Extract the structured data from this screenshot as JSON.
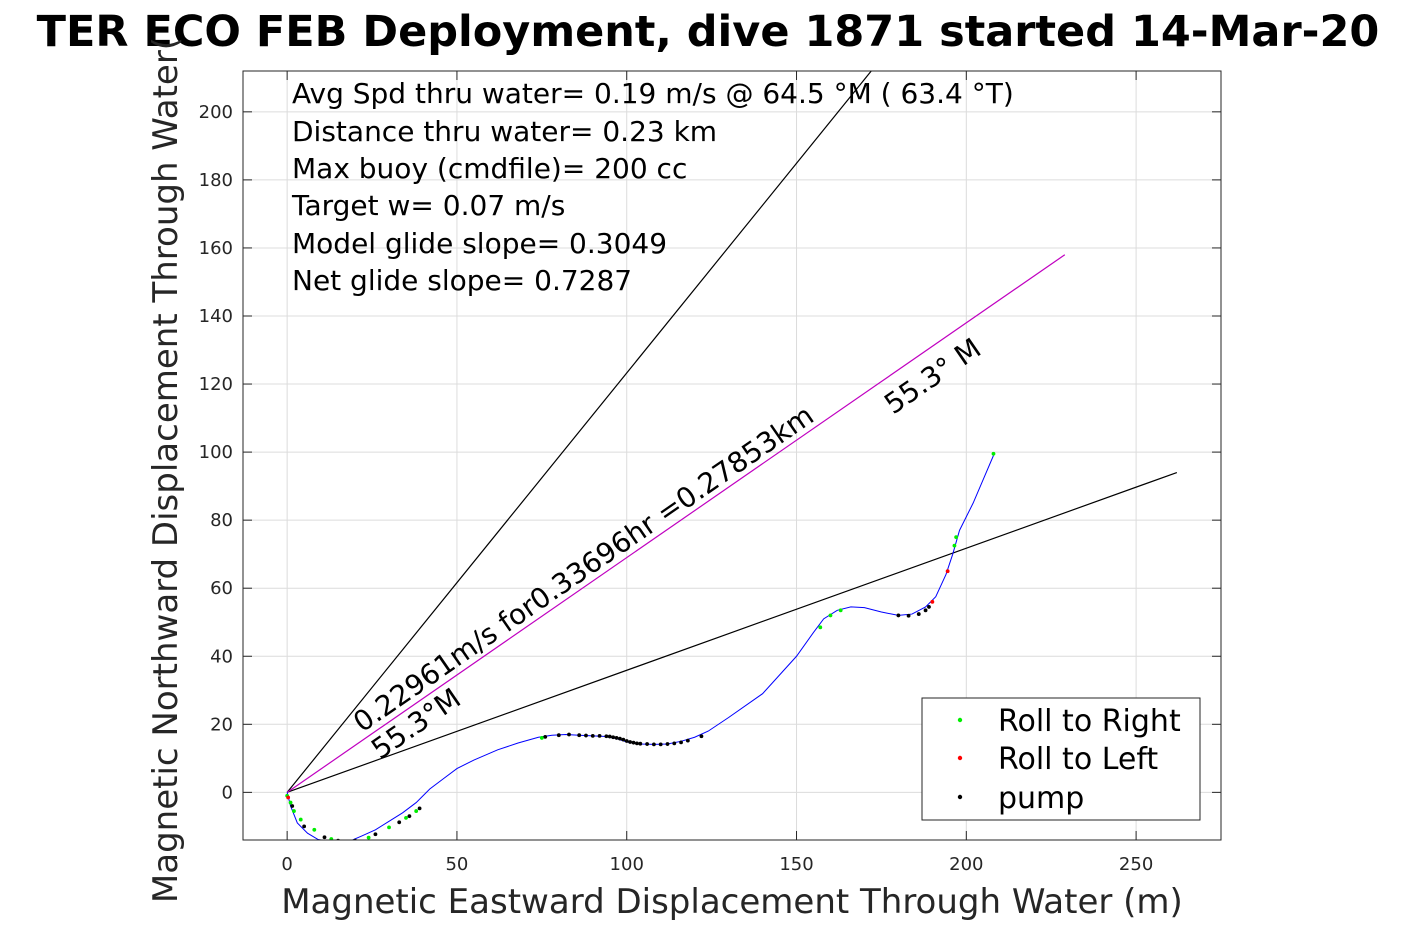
{
  "chart_data": {
    "type": "scatter",
    "title": "TER ECO FEB Deployment, dive 1871 started 14-Mar-20",
    "xlabel": "Magnetic Eastward Displacement Through Water (m)",
    "ylabel": "Magnetic Northward Displacement Through Water(",
    "xlim": [
      -13,
      275
    ],
    "ylim": [
      -14,
      212
    ],
    "xticks": [
      0,
      50,
      100,
      150,
      200,
      250
    ],
    "yticks": [
      0,
      20,
      40,
      60,
      80,
      100,
      120,
      140,
      160,
      180,
      200
    ],
    "grid": true,
    "legend_position": "bottom-right",
    "annotations": [
      "Avg Spd thru water=  0.19 m/s @  64.5 °M ( 63.4 °T)",
      "Distance thru water=  0.23 km",
      "Max buoy (cmdfile)= 200 cc",
      "Target w= 0.07 m/s",
      "Model glide slope= 0.3049",
      "Net glide slope= 0.7287"
    ],
    "slope_labels": {
      "upper_angle": "55.3° M",
      "lower_angle": "55.3°M",
      "speed": "0.22961m/s for0.33696hr =0.27853km"
    },
    "reference_lines": [
      {
        "name": "upper-bound",
        "color": "#000000",
        "x": [
          0,
          172
        ],
        "y": [
          0,
          212
        ]
      },
      {
        "name": "lower-bound",
        "color": "#000000",
        "x": [
          0,
          262
        ],
        "y": [
          0,
          94
        ]
      },
      {
        "name": "heading-line",
        "color": "#c000c0",
        "x": [
          0,
          229
        ],
        "y": [
          0,
          158
        ]
      }
    ],
    "track": {
      "color": "#0000ff",
      "x": [
        0,
        1,
        3,
        6,
        9,
        12,
        16,
        19,
        22,
        26,
        30,
        34,
        38,
        42,
        46,
        50,
        55,
        62,
        68,
        74,
        78,
        82,
        86,
        90,
        94,
        97,
        100,
        104,
        108,
        112,
        116,
        120,
        124,
        130,
        140,
        150,
        155,
        158,
        162,
        166,
        170,
        175,
        180,
        184,
        188,
        191,
        194,
        196,
        198,
        202,
        205,
        208
      ],
      "y": [
        0,
        -4,
        -9,
        -12,
        -13.8,
        -14.4,
        -14.5,
        -14.1,
        -12.8,
        -11,
        -8.5,
        -6,
        -3,
        1,
        4,
        7,
        9.5,
        12.5,
        14.5,
        16.2,
        16.8,
        17,
        16.8,
        16.6,
        16.4,
        15.8,
        14.8,
        14.2,
        14.1,
        14.2,
        15,
        16.2,
        18,
        22,
        29,
        40,
        47,
        51,
        53.5,
        54.5,
        54.3,
        53,
        52,
        52.4,
        54.5,
        57.5,
        64,
        70,
        77,
        85,
        92,
        99
      ]
    },
    "series": [
      {
        "name": "Roll to Right",
        "color": "#00ee00",
        "marker": "dot",
        "x": [
          0,
          1,
          2,
          4,
          8,
          13,
          18,
          24,
          30,
          35,
          38,
          75,
          157,
          160,
          163,
          197,
          196.5,
          208
        ],
        "y": [
          -1,
          -3,
          -5.5,
          -8,
          -11,
          -13.7,
          -14.4,
          -13.3,
          -10.3,
          -7.5,
          -5.5,
          16,
          48.5,
          52,
          53.5,
          75,
          72.5,
          99.5
        ]
      },
      {
        "name": "Roll to Left",
        "color": "#ff0000",
        "marker": "dot",
        "x": [
          0.3,
          190,
          194.5
        ],
        "y": [
          -1.5,
          56,
          65
        ]
      },
      {
        "name": "pump",
        "color": "#000000",
        "marker": "dot",
        "x": [
          1.5,
          5,
          11,
          15,
          20,
          26,
          33,
          36,
          39,
          76,
          80,
          83,
          86,
          88,
          90,
          92,
          94,
          95,
          96,
          97,
          98,
          99,
          100,
          101,
          102,
          103,
          104,
          106,
          108,
          110,
          112,
          114,
          116,
          118,
          122,
          180,
          183,
          186,
          188,
          189
        ],
        "y": [
          -4,
          -10,
          -13.2,
          -14.2,
          -14.2,
          -12.3,
          -8.8,
          -7,
          -4.7,
          16.3,
          16.8,
          17,
          16.8,
          16.7,
          16.6,
          16.6,
          16.5,
          16.4,
          16.2,
          16,
          15.8,
          15.5,
          15.1,
          14.8,
          14.6,
          14.4,
          14.3,
          14.2,
          14.1,
          14.1,
          14.2,
          14.4,
          14.7,
          15.2,
          16.5,
          52,
          51.9,
          52.4,
          53.5,
          54.5
        ]
      }
    ]
  }
}
